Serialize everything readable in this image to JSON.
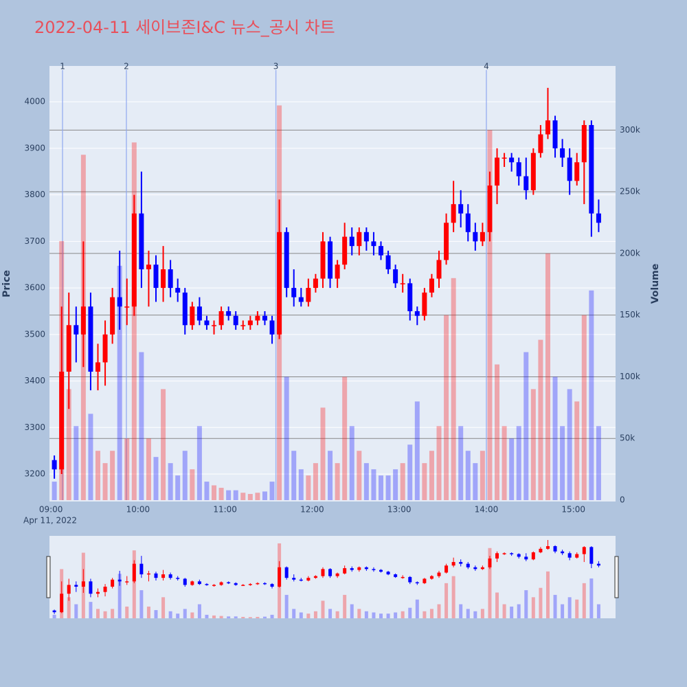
{
  "chart_data": {
    "type": "candlestick",
    "title": "2022-04-11 세이브존I&C 뉴스_공시 차트",
    "y_label": "Price",
    "y2_label": "Volume",
    "x_date_label": "Apr 11, 2022",
    "increasing_color": "#ff0000",
    "decreasing_color": "#0000ff",
    "xlim": [
      "08:59",
      "15:29"
    ],
    "xticks": [
      "09:00",
      "10:00",
      "11:00",
      "12:00",
      "13:00",
      "14:00",
      "15:00"
    ],
    "ylim": [
      3141,
      4077
    ],
    "yticks": [
      3200,
      3300,
      3400,
      3500,
      3600,
      3700,
      3800,
      3900,
      4000
    ],
    "y2lim": [
      0,
      352000
    ],
    "y2ticks": [
      0,
      {
        "value": 50000,
        "label": "50k"
      },
      {
        "value": 100000,
        "label": "100k"
      },
      {
        "value": 150000,
        "label": "150k"
      },
      {
        "value": 200000,
        "label": "200k"
      },
      {
        "value": 250000,
        "label": "250k"
      },
      {
        "value": 300000,
        "label": "300k"
      }
    ],
    "markers": [
      {
        "label": "1",
        "x": "09:08"
      },
      {
        "label": "2",
        "x": "09:52"
      },
      {
        "label": "3",
        "x": "11:35"
      },
      {
        "label": "4",
        "x": "14:00"
      }
    ],
    "x": [
      "09:00",
      "09:05",
      "09:10",
      "09:15",
      "09:20",
      "09:25",
      "09:30",
      "09:35",
      "09:40",
      "09:45",
      "09:50",
      "09:55",
      "10:00",
      "10:05",
      "10:10",
      "10:15",
      "10:20",
      "10:25",
      "10:30",
      "10:35",
      "10:40",
      "10:45",
      "10:50",
      "10:55",
      "11:00",
      "11:05",
      "11:10",
      "11:15",
      "11:20",
      "11:25",
      "11:30",
      "11:35",
      "11:40",
      "11:45",
      "11:50",
      "11:55",
      "12:00",
      "12:05",
      "12:10",
      "12:15",
      "12:20",
      "12:25",
      "12:30",
      "12:35",
      "12:40",
      "12:45",
      "12:50",
      "12:55",
      "13:00",
      "13:05",
      "13:10",
      "13:15",
      "13:20",
      "13:25",
      "13:30",
      "13:35",
      "13:40",
      "13:45",
      "13:50",
      "13:55",
      "14:00",
      "14:05",
      "14:10",
      "14:15",
      "14:20",
      "14:25",
      "14:30",
      "14:35",
      "14:40",
      "14:45",
      "14:50",
      "14:55",
      "15:00",
      "15:05",
      "15:10",
      "15:15"
    ],
    "open": [
      3230,
      3210,
      3420,
      3520,
      3500,
      3560,
      3420,
      3440,
      3500,
      3580,
      3560,
      3560,
      3760,
      3640,
      3650,
      3600,
      3640,
      3600,
      3590,
      3520,
      3560,
      3530,
      3520,
      3520,
      3550,
      3540,
      3520,
      3520,
      3530,
      3540,
      3530,
      3500,
      3720,
      3600,
      3580,
      3570,
      3600,
      3620,
      3700,
      3620,
      3650,
      3710,
      3690,
      3720,
      3700,
      3690,
      3670,
      3640,
      3610,
      3610,
      3550,
      3540,
      3590,
      3620,
      3660,
      3740,
      3780,
      3760,
      3720,
      3700,
      3720,
      3820,
      3880,
      3880,
      3870,
      3840,
      3810,
      3890,
      3930,
      3960,
      3900,
      3880,
      3830,
      3870,
      3950,
      3760
    ],
    "high": [
      3240,
      3560,
      3590,
      3560,
      3700,
      3590,
      3480,
      3530,
      3600,
      3680,
      3620,
      3800,
      3850,
      3680,
      3670,
      3690,
      3660,
      3620,
      3600,
      3570,
      3580,
      3540,
      3530,
      3560,
      3560,
      3550,
      3530,
      3540,
      3550,
      3550,
      3540,
      3790,
      3730,
      3640,
      3600,
      3620,
      3630,
      3720,
      3710,
      3660,
      3740,
      3730,
      3730,
      3730,
      3720,
      3700,
      3680,
      3650,
      3630,
      3620,
      3560,
      3600,
      3630,
      3680,
      3760,
      3830,
      3810,
      3780,
      3740,
      3740,
      3850,
      3900,
      3890,
      3890,
      3880,
      3880,
      3900,
      3950,
      4030,
      3970,
      3920,
      3900,
      3890,
      3960,
      3960,
      3790
    ],
    "low": [
      3190,
      3200,
      3340,
      3440,
      3430,
      3380,
      3380,
      3390,
      3480,
      3510,
      3520,
      3540,
      3600,
      3560,
      3570,
      3570,
      3580,
      3570,
      3500,
      3510,
      3520,
      3510,
      3500,
      3510,
      3530,
      3510,
      3510,
      3510,
      3520,
      3520,
      3480,
      3490,
      3580,
      3560,
      3560,
      3560,
      3590,
      3600,
      3600,
      3600,
      3640,
      3670,
      3670,
      3680,
      3670,
      3660,
      3630,
      3600,
      3590,
      3530,
      3520,
      3530,
      3580,
      3600,
      3650,
      3720,
      3730,
      3700,
      3680,
      3690,
      3700,
      3780,
      3860,
      3850,
      3820,
      3790,
      3800,
      3880,
      3920,
      3880,
      3860,
      3800,
      3820,
      3780,
      3710,
      3720
    ],
    "close": [
      3210,
      3420,
      3520,
      3500,
      3560,
      3420,
      3440,
      3500,
      3580,
      3560,
      3560,
      3760,
      3640,
      3650,
      3600,
      3640,
      3600,
      3590,
      3520,
      3560,
      3530,
      3520,
      3520,
      3550,
      3540,
      3520,
      3520,
      3530,
      3540,
      3530,
      3500,
      3720,
      3600,
      3580,
      3570,
      3600,
      3620,
      3700,
      3620,
      3650,
      3710,
      3690,
      3720,
      3700,
      3690,
      3670,
      3640,
      3610,
      3610,
      3550,
      3540,
      3590,
      3620,
      3660,
      3740,
      3780,
      3760,
      3720,
      3700,
      3720,
      3820,
      3880,
      3880,
      3870,
      3840,
      3810,
      3890,
      3930,
      3960,
      3900,
      3880,
      3830,
      3870,
      3950,
      3760,
      3740
    ],
    "volume": {
      "name": "Volume",
      "axis": "y2",
      "values": [
        15000,
        210000,
        90000,
        60000,
        280000,
        70000,
        40000,
        30000,
        40000,
        190000,
        50000,
        290000,
        120000,
        50000,
        35000,
        90000,
        30000,
        20000,
        40000,
        25000,
        60000,
        15000,
        12000,
        10000,
        8000,
        8000,
        6000,
        5000,
        6000,
        7000,
        15000,
        320000,
        100000,
        40000,
        25000,
        20000,
        30000,
        75000,
        40000,
        30000,
        100000,
        60000,
        40000,
        30000,
        25000,
        20000,
        20000,
        25000,
        30000,
        45000,
        80000,
        30000,
        40000,
        60000,
        150000,
        180000,
        60000,
        40000,
        30000,
        40000,
        300000,
        110000,
        60000,
        50000,
        60000,
        120000,
        90000,
        130000,
        200000,
        100000,
        60000,
        90000,
        80000,
        150000,
        170000,
        60000
      ]
    }
  }
}
